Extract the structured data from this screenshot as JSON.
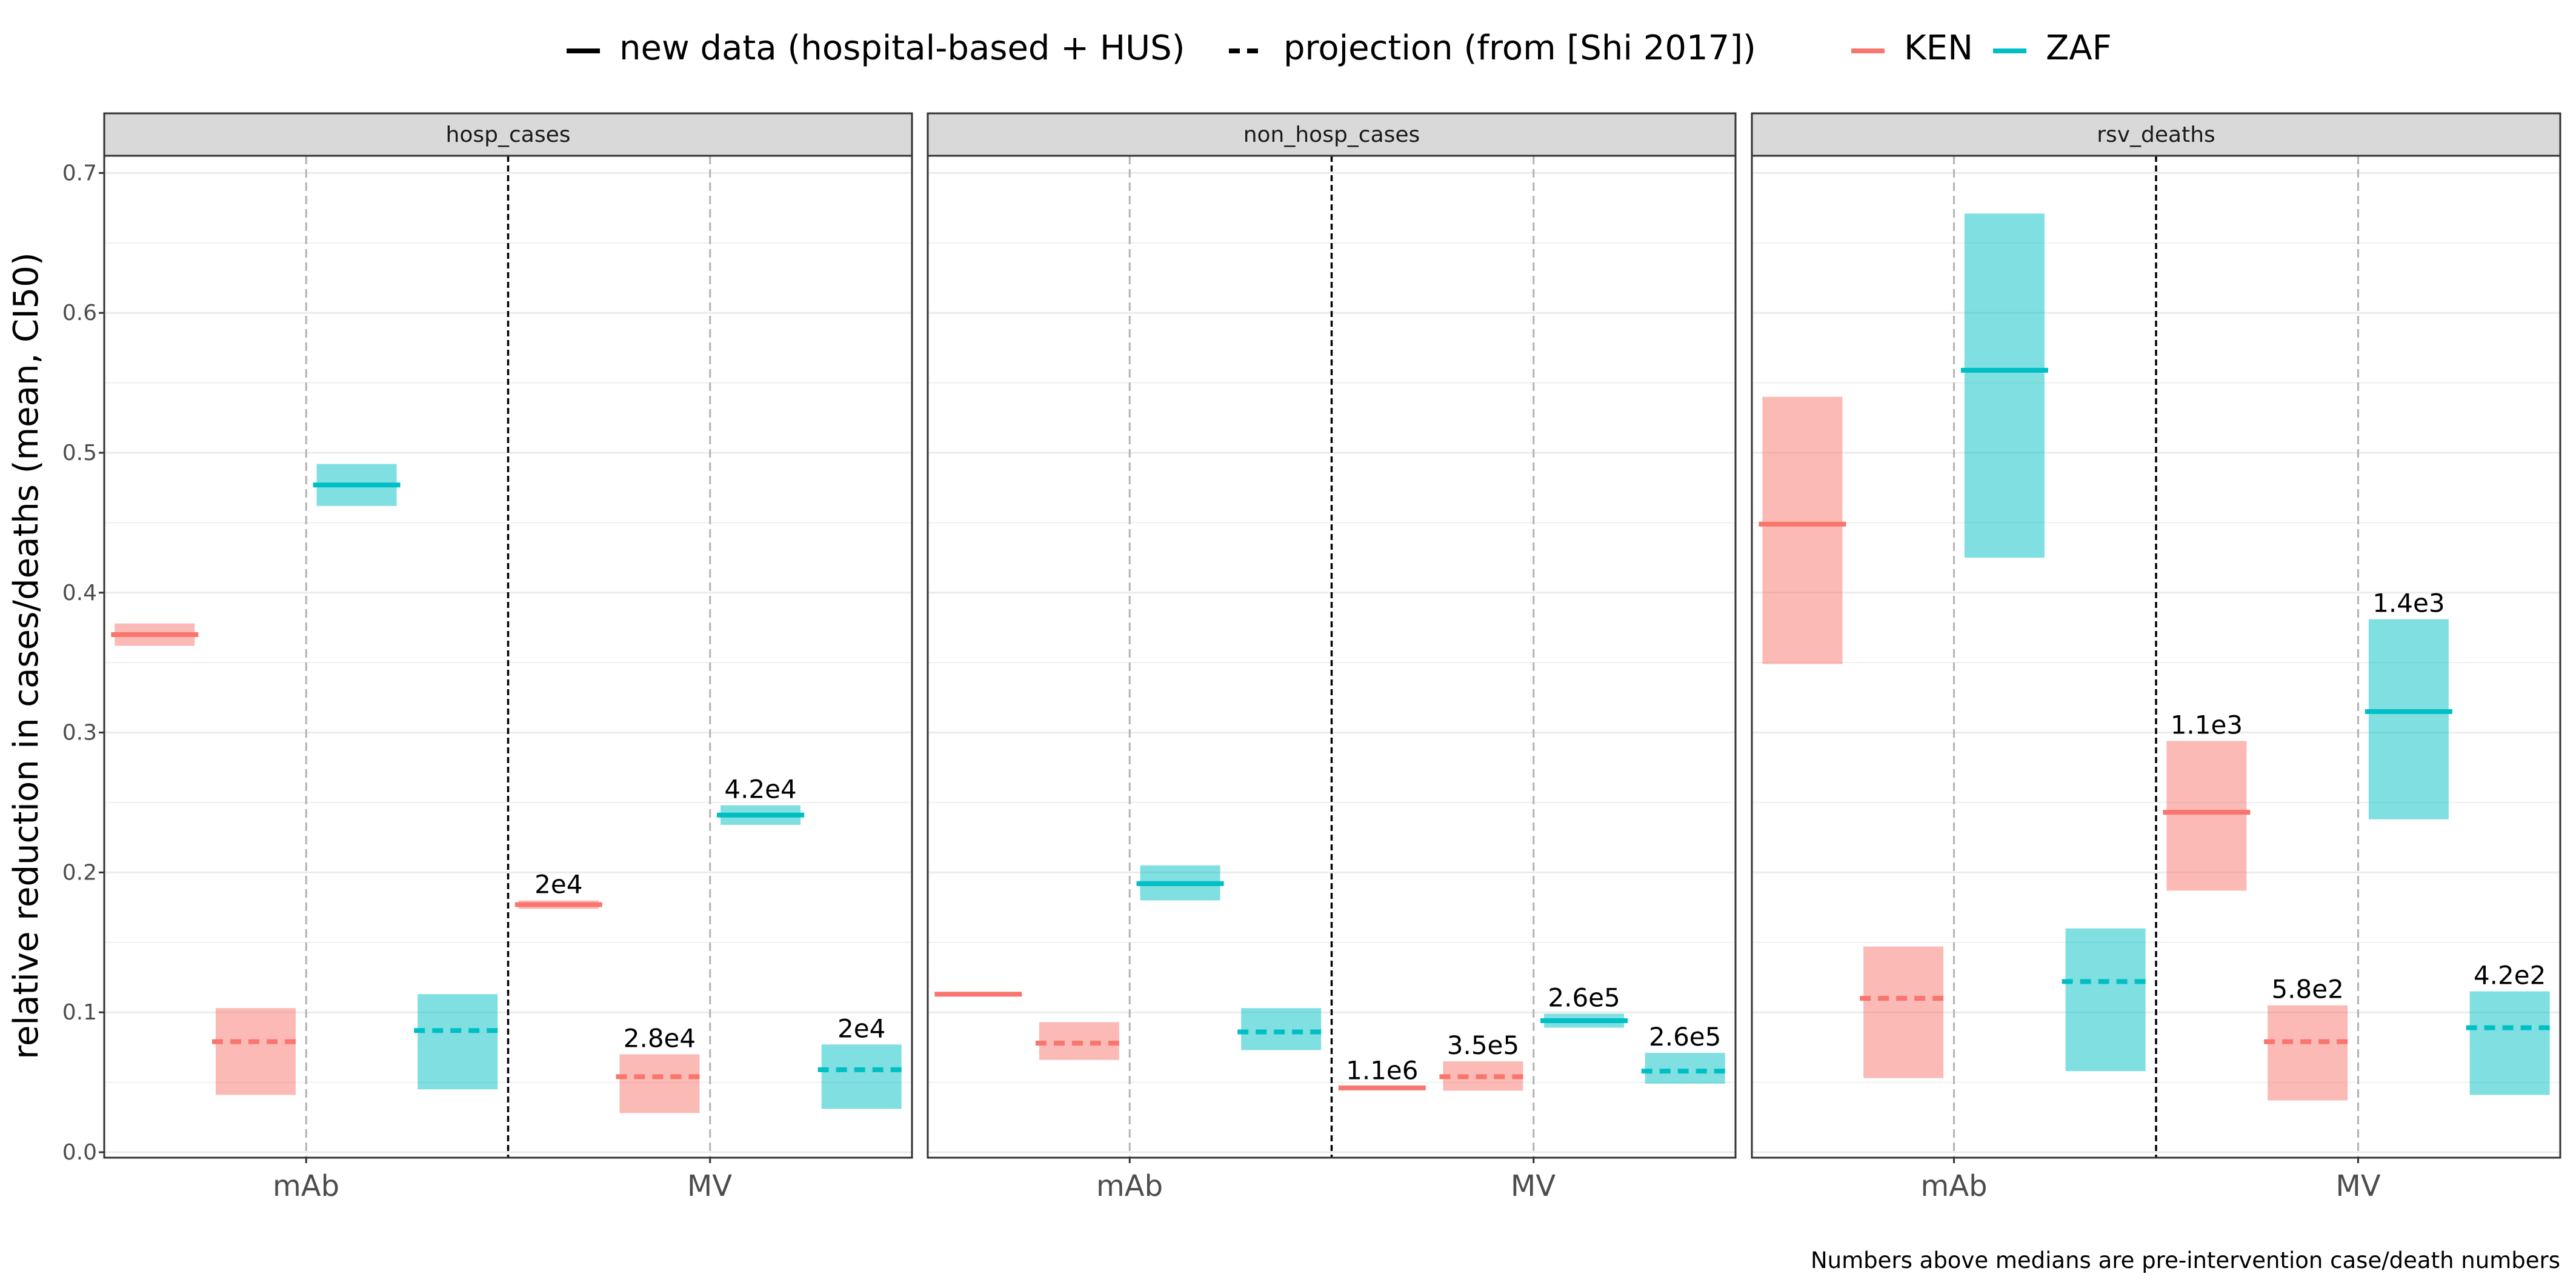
{
  "chart_data": {
    "type": "crossbar",
    "ylabel": "relative reduction in cases/deaths (mean, CI50)",
    "ylim": [
      0,
      0.7
    ],
    "yticks": [
      "0.0",
      "0.1",
      "0.2",
      "0.3",
      "0.4",
      "0.5",
      "0.6",
      "0.7"
    ],
    "categories": [
      "mAb",
      "MV"
    ],
    "countries": [
      "KEN",
      "ZAF"
    ],
    "colors": {
      "KEN": "#F8766D",
      "ZAF": "#00BFC4"
    },
    "legend": {
      "solid_label": "new data (hospital-based + HUS)",
      "dashed_label": "projection (from [Shi 2017])",
      "ken_label": "KEN",
      "zaf_label": "ZAF"
    },
    "caption": "Numbers above medians are pre-intervention case/death numbers",
    "panels": [
      {
        "title": "hosp_cases",
        "bars": [
          {
            "category": "mAb",
            "country": "KEN",
            "source": "new",
            "mean": 0.37,
            "low": 0.362,
            "high": 0.378,
            "label": ""
          },
          {
            "category": "mAb",
            "country": "KEN",
            "source": "projection",
            "mean": 0.079,
            "low": 0.041,
            "high": 0.103,
            "label": ""
          },
          {
            "category": "mAb",
            "country": "ZAF",
            "source": "new",
            "mean": 0.477,
            "low": 0.462,
            "high": 0.492,
            "label": ""
          },
          {
            "category": "mAb",
            "country": "ZAF",
            "source": "projection",
            "mean": 0.087,
            "low": 0.045,
            "high": 0.113,
            "label": ""
          },
          {
            "category": "MV",
            "country": "KEN",
            "source": "new",
            "mean": 0.177,
            "low": 0.174,
            "high": 0.18,
            "label": "2e4"
          },
          {
            "category": "MV",
            "country": "KEN",
            "source": "projection",
            "mean": 0.054,
            "low": 0.028,
            "high": 0.07,
            "label": "2.8e4"
          },
          {
            "category": "MV",
            "country": "ZAF",
            "source": "new",
            "mean": 0.241,
            "low": 0.234,
            "high": 0.248,
            "label": "4.2e4"
          },
          {
            "category": "MV",
            "country": "ZAF",
            "source": "projection",
            "mean": 0.059,
            "low": 0.031,
            "high": 0.077,
            "label": "2e4"
          }
        ]
      },
      {
        "title": "non_hosp_cases",
        "bars": [
          {
            "category": "mAb",
            "country": "KEN",
            "source": "new",
            "mean": 0.113,
            "low": 0.112,
            "high": 0.114,
            "label": ""
          },
          {
            "category": "mAb",
            "country": "KEN",
            "source": "projection",
            "mean": 0.078,
            "low": 0.066,
            "high": 0.093,
            "label": ""
          },
          {
            "category": "mAb",
            "country": "ZAF",
            "source": "new",
            "mean": 0.192,
            "low": 0.18,
            "high": 0.205,
            "label": ""
          },
          {
            "category": "mAb",
            "country": "ZAF",
            "source": "projection",
            "mean": 0.086,
            "low": 0.073,
            "high": 0.103,
            "label": ""
          },
          {
            "category": "MV",
            "country": "KEN",
            "source": "new",
            "mean": 0.046,
            "low": 0.045,
            "high": 0.047,
            "label": "1.1e6"
          },
          {
            "category": "MV",
            "country": "KEN",
            "source": "projection",
            "mean": 0.054,
            "low": 0.044,
            "high": 0.065,
            "label": "3.5e5"
          },
          {
            "category": "MV",
            "country": "ZAF",
            "source": "new",
            "mean": 0.094,
            "low": 0.089,
            "high": 0.099,
            "label": "2.6e5"
          },
          {
            "category": "MV",
            "country": "ZAF",
            "source": "projection",
            "mean": 0.058,
            "low": 0.049,
            "high": 0.071,
            "label": "2.6e5"
          }
        ]
      },
      {
        "title": "rsv_deaths",
        "bars": [
          {
            "category": "mAb",
            "country": "KEN",
            "source": "new",
            "mean": 0.449,
            "low": 0.349,
            "high": 0.54,
            "label": ""
          },
          {
            "category": "mAb",
            "country": "KEN",
            "source": "projection",
            "mean": 0.11,
            "low": 0.053,
            "high": 0.147,
            "label": ""
          },
          {
            "category": "mAb",
            "country": "ZAF",
            "source": "new",
            "mean": 0.559,
            "low": 0.425,
            "high": 0.671,
            "label": ""
          },
          {
            "category": "mAb",
            "country": "ZAF",
            "source": "projection",
            "mean": 0.122,
            "low": 0.058,
            "high": 0.16,
            "label": ""
          },
          {
            "category": "MV",
            "country": "KEN",
            "source": "new",
            "mean": 0.243,
            "low": 0.187,
            "high": 0.294,
            "label": "1.1e3"
          },
          {
            "category": "MV",
            "country": "KEN",
            "source": "projection",
            "mean": 0.079,
            "low": 0.037,
            "high": 0.105,
            "label": "5.8e2"
          },
          {
            "category": "MV",
            "country": "ZAF",
            "source": "new",
            "mean": 0.315,
            "low": 0.238,
            "high": 0.381,
            "label": "1.4e3"
          },
          {
            "category": "MV",
            "country": "ZAF",
            "source": "projection",
            "mean": 0.089,
            "low": 0.041,
            "high": 0.115,
            "label": "4.2e2"
          }
        ]
      }
    ]
  }
}
